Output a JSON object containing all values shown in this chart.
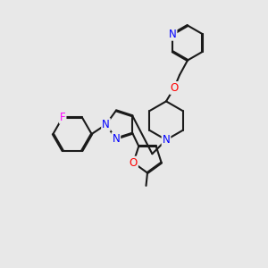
{
  "bg_color": "#e8e8e8",
  "bond_color": "#1a1a1a",
  "N_color": "#0000ff",
  "O_color": "#ff0000",
  "F_color": "#ff00ff",
  "line_width": 1.5,
  "font_size": 8.5,
  "figsize": [
    3.0,
    3.0
  ],
  "dpi": 100,
  "xlim": [
    0,
    10
  ],
  "ylim": [
    0,
    10
  ]
}
